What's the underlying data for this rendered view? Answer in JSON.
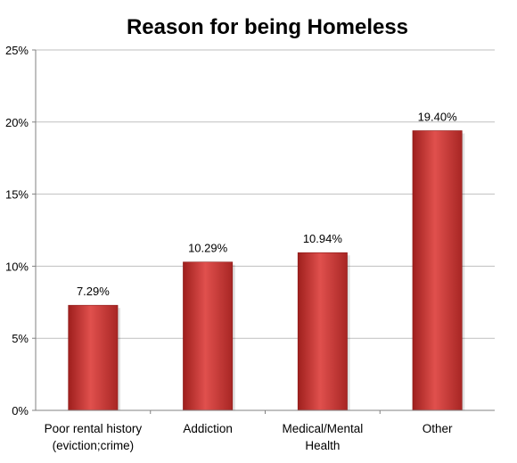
{
  "chart_data": {
    "type": "bar",
    "title": "Reason for being Homeless",
    "categories": [
      [
        "Poor rental history",
        "(eviction;crime)"
      ],
      [
        "Addiction"
      ],
      [
        "Medical/Mental",
        "Health"
      ],
      [
        "Other"
      ]
    ],
    "values": [
      7.29,
      10.29,
      10.94,
      19.4
    ],
    "data_labels": [
      "7.29%",
      "10.29%",
      "10.94%",
      "19.40%"
    ],
    "ylim": [
      0,
      25
    ],
    "yticks": [
      0,
      5,
      10,
      15,
      20,
      25
    ],
    "ytick_labels": [
      "0%",
      "5%",
      "10%",
      "15%",
      "20%",
      "25%"
    ],
    "grid": true,
    "legend": "none",
    "bar_color": "#c0302e"
  }
}
